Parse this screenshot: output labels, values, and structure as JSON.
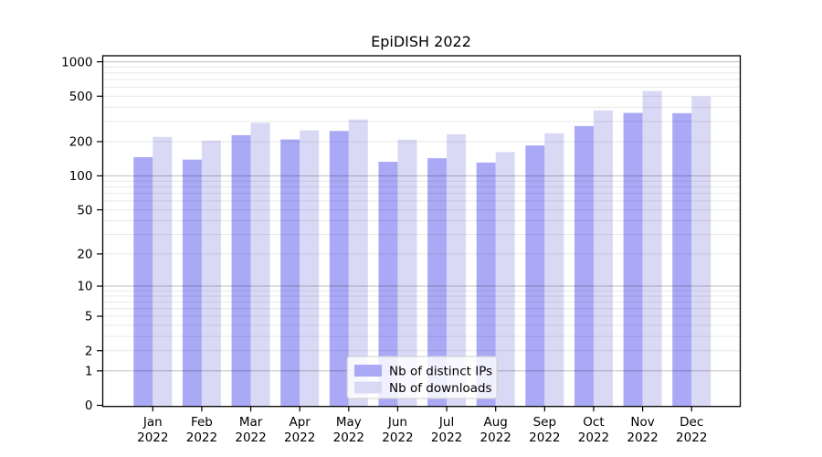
{
  "chart_data": {
    "type": "bar",
    "title": "EpiDISH 2022",
    "categories": [
      "Jan",
      "Feb",
      "Mar",
      "Apr",
      "May",
      "Jun",
      "Jul",
      "Aug",
      "Sep",
      "Oct",
      "Nov",
      "Dec"
    ],
    "x_year_label": "2022",
    "series": [
      {
        "name": "Nb of distinct IPs",
        "color": "#a9a9f6",
        "values": [
          146,
          139,
          228,
          209,
          248,
          133,
          143,
          131,
          185,
          274,
          357,
          355
        ]
      },
      {
        "name": "Nb of downloads",
        "color": "#d9d9f6",
        "values": [
          220,
          204,
          292,
          251,
          313,
          208,
          232,
          162,
          237,
          375,
          555,
          497
        ]
      }
    ],
    "y_scale": "log(value+1)",
    "y_ticks": [
      1000,
      500,
      200,
      100,
      50,
      20,
      10,
      5,
      2,
      1,
      0
    ],
    "ylim": [
      0,
      1130
    ],
    "grid": "on",
    "grid_major_color": "#bdbdbd",
    "grid_minor_color": "#e8e8e8",
    "axis_color": "#000000",
    "background": "#ffffff",
    "legend_position": "inside-bottom-center"
  }
}
